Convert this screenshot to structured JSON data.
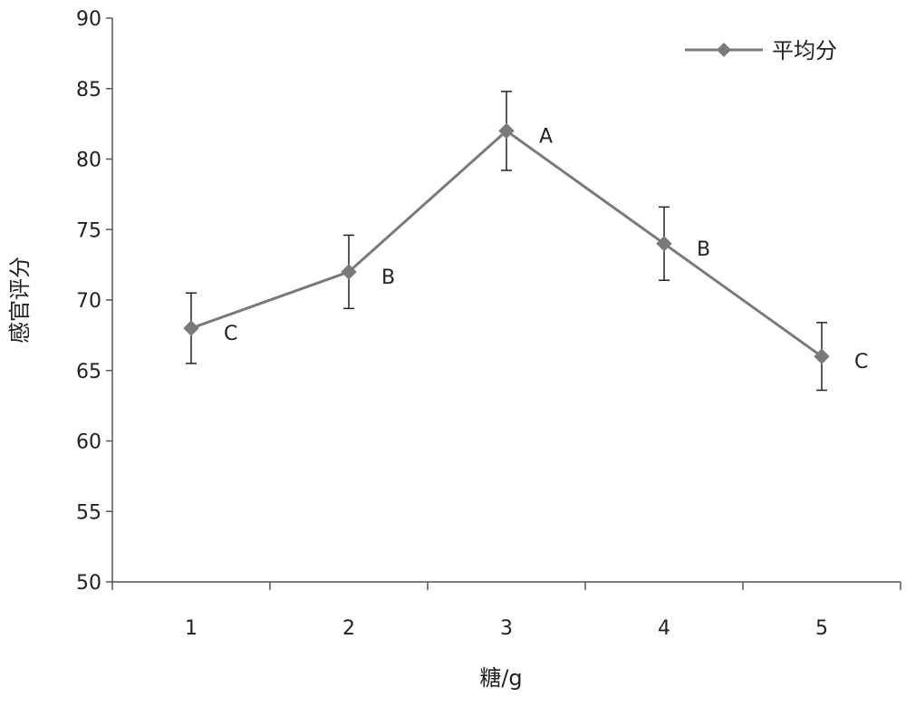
{
  "chart_data": {
    "type": "line",
    "title": "",
    "xlabel": "糖/g",
    "ylabel": "感官评分",
    "categories": [
      "1",
      "2",
      "3",
      "4",
      "5"
    ],
    "ylim": [
      50,
      90
    ],
    "yticks": [
      "50",
      "55",
      "60",
      "65",
      "70",
      "75",
      "80",
      "85",
      "90"
    ],
    "grid": false,
    "legend_position": "top-right",
    "series": [
      {
        "name": "平均分",
        "values": [
          68.0,
          72.0,
          82.0,
          74.0,
          66.0
        ],
        "error": [
          2.5,
          2.6,
          2.8,
          2.6,
          2.4
        ],
        "point_labels": [
          "C",
          "B",
          "A",
          "B",
          "C"
        ],
        "color": "#7a7a7a",
        "marker": "diamond"
      }
    ]
  }
}
